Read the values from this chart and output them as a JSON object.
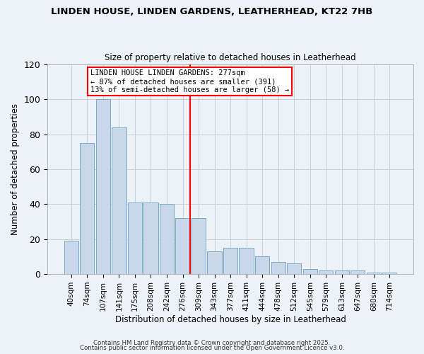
{
  "title_line1": "LINDEN HOUSE, LINDEN GARDENS, LEATHERHEAD, KT22 7HB",
  "title_line2": "Size of property relative to detached houses in Leatherhead",
  "xlabel": "Distribution of detached houses by size in Leatherhead",
  "ylabel": "Number of detached properties",
  "categories": [
    "40sqm",
    "74sqm",
    "107sqm",
    "141sqm",
    "175sqm",
    "208sqm",
    "242sqm",
    "276sqm",
    "309sqm",
    "343sqm",
    "377sqm",
    "411sqm",
    "444sqm",
    "478sqm",
    "512sqm",
    "545sqm",
    "579sqm",
    "613sqm",
    "647sqm",
    "680sqm",
    "714sqm"
  ],
  "values": [
    19,
    75,
    100,
    84,
    41,
    41,
    40,
    32,
    32,
    13,
    15,
    15,
    10,
    7,
    6,
    3,
    2,
    2,
    2,
    1,
    1
  ],
  "bar_color": "#c8d8ea",
  "bar_edge_color": "#7aaac8",
  "grid_color": "#c8d0d8",
  "background_color": "#edf2f7",
  "vline_x_index": 7,
  "vline_color": "red",
  "annotation_title": "LINDEN HOUSE LINDEN GARDENS: 277sqm",
  "annotation_line1": "← 87% of detached houses are smaller (391)",
  "annotation_line2": "13% of semi-detached houses are larger (58) →",
  "annotation_box_color": "white",
  "annotation_border_color": "red",
  "ylim": [
    0,
    120
  ],
  "yticks": [
    0,
    20,
    40,
    60,
    80,
    100,
    120
  ],
  "footer1": "Contains HM Land Registry data © Crown copyright and database right 2025.",
  "footer2": "Contains public sector information licensed under the Open Government Licence v3.0."
}
